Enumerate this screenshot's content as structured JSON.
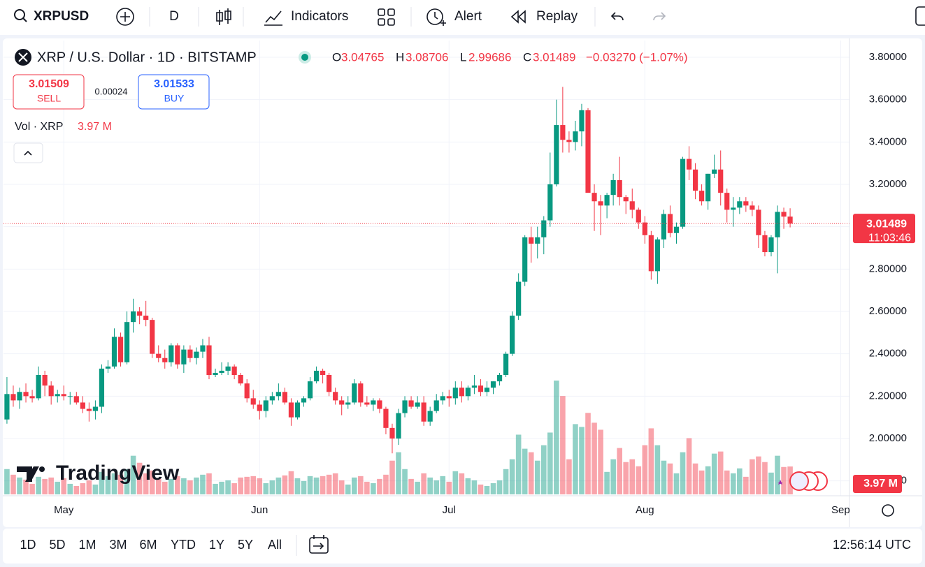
{
  "toolbar": {
    "symbol": "XRPUSD",
    "interval": "D",
    "indicators": "Indicators",
    "alert": "Alert",
    "replay": "Replay"
  },
  "legend": {
    "title": "XRP / U.S. Dollar · 1D · BITSTAMP",
    "o": "O",
    "h": "H",
    "l": "L",
    "c": "C",
    "change": "−0.03270 (−1.07%)",
    "sell_price": "3.01509",
    "sell": "SELL",
    "spread": "0.00024",
    "buy_price": "3.01533",
    "buy": "BUY",
    "volume_title": "Vol · XRP"
  },
  "bottom": {
    "ranges": [
      "1D",
      "5D",
      "1M",
      "3M",
      "6M",
      "YTD",
      "1Y",
      "5Y",
      "All"
    ],
    "clock": "12:56:14 UTC"
  },
  "watermark": "TradingView",
  "chart_data": {
    "type": "candlestick",
    "up_color": "#089981",
    "down_color": "#f23645",
    "countdown": "11:03:46",
    "last_volume_label": "3.97 M",
    "xlim": [
      -1.1,
      133.4
    ],
    "xticks": [
      {
        "value": 9,
        "label": "May"
      },
      {
        "value": 40,
        "label": "Jun"
      },
      {
        "value": 70,
        "label": "Jul"
      },
      {
        "value": 101,
        "label": "Aug"
      },
      {
        "value": 132,
        "label": "Sep"
      }
    ],
    "ylim": [
      1.75,
      3.9
    ],
    "yticks": [
      {
        "value": 1.8,
        "label": "1.80000"
      },
      {
        "value": 2.0,
        "label": "2.00000"
      },
      {
        "value": 2.2,
        "label": "2.20000"
      },
      {
        "value": 2.4,
        "label": "2.40000"
      },
      {
        "value": 2.6,
        "label": "2.60000"
      },
      {
        "value": 2.8,
        "label": "2.80000"
      },
      {
        "value": 3.0,
        "label": "3.00000"
      },
      {
        "value": 3.2,
        "label": "3.20000"
      },
      {
        "value": 3.4,
        "label": "3.40000"
      },
      {
        "value": 3.6,
        "label": "3.60000"
      },
      {
        "value": 3.8,
        "label": "3.80000"
      }
    ],
    "grid": true,
    "candles": [
      {
        "o": 2.09,
        "h": 2.29,
        "l": 2.07,
        "c": 2.21,
        "v": 3.6
      },
      {
        "o": 2.21,
        "h": 2.25,
        "l": 2.15,
        "c": 2.18,
        "v": 2.8
      },
      {
        "o": 2.18,
        "h": 2.24,
        "l": 2.14,
        "c": 2.22,
        "v": 2.4
      },
      {
        "o": 2.22,
        "h": 2.26,
        "l": 2.17,
        "c": 2.2,
        "v": 2.1
      },
      {
        "o": 2.2,
        "h": 2.23,
        "l": 2.17,
        "c": 2.19,
        "v": 1.5
      },
      {
        "o": 2.19,
        "h": 2.34,
        "l": 2.18,
        "c": 2.3,
        "v": 2.5
      },
      {
        "o": 2.3,
        "h": 2.32,
        "l": 2.2,
        "c": 2.25,
        "v": 2.2
      },
      {
        "o": 2.25,
        "h": 2.27,
        "l": 2.16,
        "c": 2.2,
        "v": 2.4
      },
      {
        "o": 2.2,
        "h": 2.23,
        "l": 2.17,
        "c": 2.21,
        "v": 1.8
      },
      {
        "o": 2.21,
        "h": 2.25,
        "l": 2.18,
        "c": 2.2,
        "v": 2.3
      },
      {
        "o": 2.2,
        "h": 2.22,
        "l": 2.16,
        "c": 2.2,
        "v": 1.5
      },
      {
        "o": 2.2,
        "h": 2.22,
        "l": 2.16,
        "c": 2.17,
        "v": 1.2
      },
      {
        "o": 2.17,
        "h": 2.2,
        "l": 2.12,
        "c": 2.14,
        "v": 1.6
      },
      {
        "o": 2.14,
        "h": 2.17,
        "l": 2.08,
        "c": 2.13,
        "v": 2.0
      },
      {
        "o": 2.13,
        "h": 2.18,
        "l": 2.09,
        "c": 2.15,
        "v": 1.4
      },
      {
        "o": 2.15,
        "h": 2.35,
        "l": 2.12,
        "c": 2.33,
        "v": 3.2
      },
      {
        "o": 2.33,
        "h": 2.37,
        "l": 2.31,
        "c": 2.34,
        "v": 2.6
      },
      {
        "o": 2.34,
        "h": 2.52,
        "l": 2.33,
        "c": 2.48,
        "v": 3.0
      },
      {
        "o": 2.48,
        "h": 2.5,
        "l": 2.34,
        "c": 2.36,
        "v": 2.8
      },
      {
        "o": 2.36,
        "h": 2.6,
        "l": 2.35,
        "c": 2.55,
        "v": 3.6
      },
      {
        "o": 2.55,
        "h": 2.66,
        "l": 2.5,
        "c": 2.6,
        "v": 5.5
      },
      {
        "o": 2.6,
        "h": 2.62,
        "l": 2.54,
        "c": 2.58,
        "v": 4.5
      },
      {
        "o": 2.58,
        "h": 2.65,
        "l": 2.53,
        "c": 2.56,
        "v": 3.0
      },
      {
        "o": 2.56,
        "h": 2.57,
        "l": 2.38,
        "c": 2.4,
        "v": 3.4
      },
      {
        "o": 2.4,
        "h": 2.44,
        "l": 2.36,
        "c": 2.38,
        "v": 2.2
      },
      {
        "o": 2.38,
        "h": 2.42,
        "l": 2.33,
        "c": 2.36,
        "v": 1.8
      },
      {
        "o": 2.36,
        "h": 2.45,
        "l": 2.34,
        "c": 2.44,
        "v": 2.2
      },
      {
        "o": 2.44,
        "h": 2.45,
        "l": 2.33,
        "c": 2.35,
        "v": 2.6
      },
      {
        "o": 2.35,
        "h": 2.44,
        "l": 2.31,
        "c": 2.42,
        "v": 2.3
      },
      {
        "o": 2.42,
        "h": 2.44,
        "l": 2.36,
        "c": 2.38,
        "v": 2.0
      },
      {
        "o": 2.38,
        "h": 2.43,
        "l": 2.35,
        "c": 2.41,
        "v": 2.4
      },
      {
        "o": 2.41,
        "h": 2.47,
        "l": 2.38,
        "c": 2.44,
        "v": 2.8
      },
      {
        "o": 2.44,
        "h": 2.48,
        "l": 2.28,
        "c": 2.3,
        "v": 3.0
      },
      {
        "o": 2.3,
        "h": 2.33,
        "l": 2.29,
        "c": 2.31,
        "v": 1.5
      },
      {
        "o": 2.31,
        "h": 2.36,
        "l": 2.3,
        "c": 2.32,
        "v": 1.8
      },
      {
        "o": 2.32,
        "h": 2.36,
        "l": 2.3,
        "c": 2.34,
        "v": 2.0
      },
      {
        "o": 2.34,
        "h": 2.35,
        "l": 2.28,
        "c": 2.3,
        "v": 1.6
      },
      {
        "o": 2.3,
        "h": 2.31,
        "l": 2.25,
        "c": 2.26,
        "v": 2.4
      },
      {
        "o": 2.26,
        "h": 2.28,
        "l": 2.17,
        "c": 2.19,
        "v": 2.5
      },
      {
        "o": 2.19,
        "h": 2.23,
        "l": 2.14,
        "c": 2.16,
        "v": 2.6
      },
      {
        "o": 2.16,
        "h": 2.18,
        "l": 2.09,
        "c": 2.13,
        "v": 2.3
      },
      {
        "o": 2.13,
        "h": 2.2,
        "l": 2.1,
        "c": 2.18,
        "v": 1.6
      },
      {
        "o": 2.18,
        "h": 2.22,
        "l": 2.16,
        "c": 2.2,
        "v": 2.0
      },
      {
        "o": 2.2,
        "h": 2.26,
        "l": 2.18,
        "c": 2.22,
        "v": 2.4
      },
      {
        "o": 2.22,
        "h": 2.24,
        "l": 2.16,
        "c": 2.17,
        "v": 2.7
      },
      {
        "o": 2.17,
        "h": 2.19,
        "l": 2.06,
        "c": 2.1,
        "v": 3.3
      },
      {
        "o": 2.1,
        "h": 2.18,
        "l": 2.09,
        "c": 2.17,
        "v": 2.3
      },
      {
        "o": 2.17,
        "h": 2.2,
        "l": 2.15,
        "c": 2.19,
        "v": 1.9
      },
      {
        "o": 2.19,
        "h": 2.29,
        "l": 2.18,
        "c": 2.27,
        "v": 2.6
      },
      {
        "o": 2.27,
        "h": 2.34,
        "l": 2.26,
        "c": 2.32,
        "v": 2.4
      },
      {
        "o": 2.32,
        "h": 2.33,
        "l": 2.26,
        "c": 2.3,
        "v": 2.6
      },
      {
        "o": 2.3,
        "h": 2.31,
        "l": 2.2,
        "c": 2.22,
        "v": 2.8
      },
      {
        "o": 2.22,
        "h": 2.24,
        "l": 2.16,
        "c": 2.18,
        "v": 3.0
      },
      {
        "o": 2.18,
        "h": 2.2,
        "l": 2.11,
        "c": 2.16,
        "v": 2.0
      },
      {
        "o": 2.16,
        "h": 2.2,
        "l": 2.14,
        "c": 2.17,
        "v": 1.4
      },
      {
        "o": 2.17,
        "h": 2.28,
        "l": 2.16,
        "c": 2.26,
        "v": 2.4
      },
      {
        "o": 2.26,
        "h": 2.27,
        "l": 2.15,
        "c": 2.17,
        "v": 2.6
      },
      {
        "o": 2.17,
        "h": 2.2,
        "l": 2.15,
        "c": 2.16,
        "v": 1.8
      },
      {
        "o": 2.16,
        "h": 2.19,
        "l": 2.13,
        "c": 2.18,
        "v": 1.6
      },
      {
        "o": 2.18,
        "h": 2.19,
        "l": 2.12,
        "c": 2.14,
        "v": 2.2
      },
      {
        "o": 2.14,
        "h": 2.15,
        "l": 2.02,
        "c": 2.05,
        "v": 2.8
      },
      {
        "o": 2.05,
        "h": 2.07,
        "l": 1.93,
        "c": 2.0,
        "v": 4.8
      },
      {
        "o": 2.0,
        "h": 2.14,
        "l": 1.97,
        "c": 2.12,
        "v": 6.0
      },
      {
        "o": 2.12,
        "h": 2.2,
        "l": 2.1,
        "c": 2.18,
        "v": 3.6
      },
      {
        "o": 2.18,
        "h": 2.2,
        "l": 2.14,
        "c": 2.15,
        "v": 2.2
      },
      {
        "o": 2.15,
        "h": 2.2,
        "l": 2.14,
        "c": 2.17,
        "v": 1.8
      },
      {
        "o": 2.17,
        "h": 2.2,
        "l": 2.06,
        "c": 2.08,
        "v": 3.0
      },
      {
        "o": 2.08,
        "h": 2.15,
        "l": 2.06,
        "c": 2.13,
        "v": 2.4
      },
      {
        "o": 2.13,
        "h": 2.21,
        "l": 2.12,
        "c": 2.18,
        "v": 2.0
      },
      {
        "o": 2.18,
        "h": 2.22,
        "l": 2.16,
        "c": 2.2,
        "v": 2.6
      },
      {
        "o": 2.2,
        "h": 2.23,
        "l": 2.15,
        "c": 2.19,
        "v": 1.8
      },
      {
        "o": 2.19,
        "h": 2.27,
        "l": 2.16,
        "c": 2.24,
        "v": 3.3
      },
      {
        "o": 2.24,
        "h": 2.27,
        "l": 2.17,
        "c": 2.2,
        "v": 3.0
      },
      {
        "o": 2.2,
        "h": 2.25,
        "l": 2.18,
        "c": 2.24,
        "v": 2.3
      },
      {
        "o": 2.24,
        "h": 2.3,
        "l": 2.21,
        "c": 2.25,
        "v": 2.0
      },
      {
        "o": 2.25,
        "h": 2.28,
        "l": 2.2,
        "c": 2.22,
        "v": 1.4
      },
      {
        "o": 2.22,
        "h": 2.27,
        "l": 2.2,
        "c": 2.24,
        "v": 1.2
      },
      {
        "o": 2.24,
        "h": 2.27,
        "l": 2.21,
        "c": 2.27,
        "v": 1.6
      },
      {
        "o": 2.27,
        "h": 2.31,
        "l": 2.25,
        "c": 2.3,
        "v": 2.0
      },
      {
        "o": 2.3,
        "h": 2.41,
        "l": 2.29,
        "c": 2.4,
        "v": 3.6
      },
      {
        "o": 2.4,
        "h": 2.6,
        "l": 2.39,
        "c": 2.58,
        "v": 5.0
      },
      {
        "o": 2.58,
        "h": 2.78,
        "l": 2.56,
        "c": 2.74,
        "v": 8.5
      },
      {
        "o": 2.74,
        "h": 2.96,
        "l": 2.72,
        "c": 2.95,
        "v": 6.5
      },
      {
        "o": 2.95,
        "h": 3.0,
        "l": 2.83,
        "c": 2.92,
        "v": 6.0
      },
      {
        "o": 2.92,
        "h": 3.0,
        "l": 2.85,
        "c": 2.95,
        "v": 4.8
      },
      {
        "o": 2.95,
        "h": 3.05,
        "l": 2.87,
        "c": 3.03,
        "v": 7.0
      },
      {
        "o": 3.03,
        "h": 3.35,
        "l": 3.0,
        "c": 3.2,
        "v": 8.8
      },
      {
        "o": 3.2,
        "h": 3.6,
        "l": 3.19,
        "c": 3.48,
        "v": 16.2
      },
      {
        "o": 3.48,
        "h": 3.66,
        "l": 3.35,
        "c": 3.41,
        "v": 14.0
      },
      {
        "o": 3.41,
        "h": 3.45,
        "l": 3.35,
        "c": 3.4,
        "v": 5.0
      },
      {
        "o": 3.4,
        "h": 3.5,
        "l": 3.36,
        "c": 3.45,
        "v": 10.0
      },
      {
        "o": 3.45,
        "h": 3.58,
        "l": 3.38,
        "c": 3.55,
        "v": 9.6
      },
      {
        "o": 3.55,
        "h": 3.56,
        "l": 3.17,
        "c": 3.16,
        "v": 11.6
      },
      {
        "o": 3.16,
        "h": 3.2,
        "l": 2.98,
        "c": 3.12,
        "v": 10.2
      },
      {
        "o": 3.12,
        "h": 3.15,
        "l": 2.96,
        "c": 3.1,
        "v": 9.2
      },
      {
        "o": 3.1,
        "h": 3.16,
        "l": 3.04,
        "c": 3.15,
        "v": 3.2
      },
      {
        "o": 3.15,
        "h": 3.25,
        "l": 3.1,
        "c": 3.22,
        "v": 5.0
      },
      {
        "o": 3.22,
        "h": 3.33,
        "l": 3.1,
        "c": 3.14,
        "v": 6.6
      },
      {
        "o": 3.14,
        "h": 3.15,
        "l": 3.06,
        "c": 3.12,
        "v": 4.6
      },
      {
        "o": 3.12,
        "h": 3.18,
        "l": 3.04,
        "c": 3.08,
        "v": 5.0
      },
      {
        "o": 3.08,
        "h": 3.09,
        "l": 2.99,
        "c": 3.02,
        "v": 4.0
      },
      {
        "o": 3.02,
        "h": 3.05,
        "l": 2.92,
        "c": 2.96,
        "v": 7.0
      },
      {
        "o": 2.96,
        "h": 2.98,
        "l": 2.75,
        "c": 2.79,
        "v": 9.4
      },
      {
        "o": 2.79,
        "h": 2.95,
        "l": 2.73,
        "c": 2.94,
        "v": 7.0
      },
      {
        "o": 2.94,
        "h": 3.08,
        "l": 2.9,
        "c": 3.06,
        "v": 4.8
      },
      {
        "o": 3.06,
        "h": 3.1,
        "l": 2.95,
        "c": 2.97,
        "v": 4.4
      },
      {
        "o": 2.97,
        "h": 3.02,
        "l": 2.92,
        "c": 3.0,
        "v": 3.0
      },
      {
        "o": 3.0,
        "h": 3.33,
        "l": 2.99,
        "c": 3.32,
        "v": 6.0
      },
      {
        "o": 3.32,
        "h": 3.38,
        "l": 3.22,
        "c": 3.27,
        "v": 8.0
      },
      {
        "o": 3.27,
        "h": 3.3,
        "l": 3.13,
        "c": 3.17,
        "v": 4.4
      },
      {
        "o": 3.17,
        "h": 3.2,
        "l": 3.1,
        "c": 3.12,
        "v": 3.4
      },
      {
        "o": 3.12,
        "h": 3.25,
        "l": 3.08,
        "c": 3.25,
        "v": 4.0
      },
      {
        "o": 3.25,
        "h": 3.34,
        "l": 3.23,
        "c": 3.27,
        "v": 5.8
      },
      {
        "o": 3.27,
        "h": 3.36,
        "l": 3.1,
        "c": 3.16,
        "v": 6.1
      },
      {
        "o": 3.16,
        "h": 3.18,
        "l": 3.02,
        "c": 3.08,
        "v": 3.4
      },
      {
        "o": 3.08,
        "h": 3.14,
        "l": 3.0,
        "c": 3.09,
        "v": 3.0
      },
      {
        "o": 3.09,
        "h": 3.14,
        "l": 3.06,
        "c": 3.12,
        "v": 3.7
      },
      {
        "o": 3.12,
        "h": 3.14,
        "l": 3.07,
        "c": 3.1,
        "v": 2.5
      },
      {
        "o": 3.1,
        "h": 3.12,
        "l": 3.05,
        "c": 3.08,
        "v": 5.0
      },
      {
        "o": 3.08,
        "h": 3.1,
        "l": 2.9,
        "c": 2.96,
        "v": 5.4
      },
      {
        "o": 2.96,
        "h": 2.98,
        "l": 2.86,
        "c": 2.88,
        "v": 4.6
      },
      {
        "o": 2.88,
        "h": 2.96,
        "l": 2.86,
        "c": 2.95,
        "v": 3.1
      },
      {
        "o": 2.95,
        "h": 3.1,
        "l": 2.78,
        "c": 3.07,
        "v": 5.5
      },
      {
        "o": 3.07,
        "h": 3.09,
        "l": 2.99,
        "c": 3.04759,
        "v": 3.9
      },
      {
        "o": 3.04765,
        "h": 3.08706,
        "l": 2.99686,
        "c": 3.01489,
        "v": 3.97
      }
    ]
  }
}
